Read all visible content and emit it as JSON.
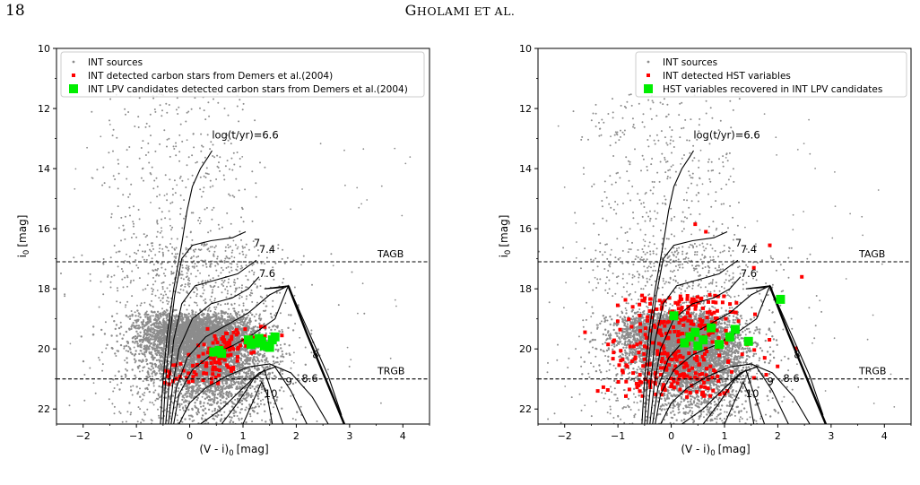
{
  "header": {
    "page_number": "18",
    "running_head_first": "G",
    "running_head_rest": "HOLAMI ET AL."
  },
  "colors": {
    "int_sources": "#8c8c8c",
    "detected": "#ff0000",
    "lpv": "#00ee00",
    "isochrone": "#000000"
  },
  "chart_data": [
    {
      "type": "scatter",
      "panel": "left",
      "xlabel": "(V - i)",
      "xlabel_sub": "0",
      "xlabel_unit": "[mag]",
      "ylabel": "i",
      "ylabel_sub": "0",
      "ylabel_unit": "[mag]",
      "xlim": [
        -2.5,
        4.5
      ],
      "ylim": [
        22.5,
        10
      ],
      "y_inverted": true,
      "xticks": [
        -2,
        -1,
        0,
        1,
        2,
        3,
        4
      ],
      "xtick_labels": [
        "−2",
        "−1",
        "0",
        "1",
        "2",
        "3",
        "4"
      ],
      "yticks": [
        10,
        12,
        14,
        16,
        18,
        20,
        22
      ],
      "ytick_labels": [
        "10",
        "12",
        "14",
        "16",
        "18",
        "20",
        "22"
      ],
      "legend_position": "top-left",
      "legend": [
        {
          "label": "INT sources",
          "marker": "dot",
          "color": "#8c8c8c"
        },
        {
          "label": "INT detected carbon stars from Demers et al.(2004)",
          "marker": "small-square",
          "color": "#ff0000"
        },
        {
          "label": "INT LPV candidates detected carbon stars from Demers et al.(2004)",
          "marker": "square",
          "color": "#00ee00"
        }
      ],
      "reference_lines": [
        {
          "label": "TAGB",
          "y": 17.1
        },
        {
          "label": "TRGB",
          "y": 21.0
        }
      ],
      "isochrone_labels": [
        {
          "text": "log(t/yr)=6.6",
          "x": 0.45,
          "y": 13.0
        },
        {
          "text": "7",
          "x": 1.2,
          "y": 16.6
        },
        {
          "text": "7.4",
          "x": 1.3,
          "y": 16.8
        },
        {
          "text": "7.6",
          "x": 1.3,
          "y": 17.6
        },
        {
          "text": "8",
          "x": 2.3,
          "y": 20.3
        },
        {
          "text": "8.6",
          "x": 2.1,
          "y": 21.1
        },
        {
          "text": "9",
          "x": 1.8,
          "y": 21.2
        },
        {
          "text": "10",
          "x": 1.4,
          "y": 21.6
        }
      ],
      "series": [
        {
          "name": "INT LPV candidates detected carbon stars from Demers et al.(2004)",
          "points": [
            [
              0.55,
              20.05
            ],
            [
              0.6,
              20.15
            ],
            [
              1.1,
              19.7
            ],
            [
              1.15,
              19.85
            ],
            [
              1.25,
              19.8
            ],
            [
              1.35,
              19.75
            ],
            [
              1.4,
              19.9
            ],
            [
              1.5,
              19.95
            ],
            [
              1.55,
              19.7
            ],
            [
              1.6,
              19.6
            ],
            [
              1.3,
              19.65
            ],
            [
              0.45,
              20.1
            ]
          ]
        }
      ]
    },
    {
      "type": "scatter",
      "panel": "right",
      "xlabel": "(V - i)",
      "xlabel_sub": "0",
      "xlabel_unit": "[mag]",
      "ylabel": "i",
      "ylabel_sub": "0",
      "ylabel_unit": "[mag]",
      "xlim": [
        -2.5,
        4.5
      ],
      "ylim": [
        22.5,
        10
      ],
      "y_inverted": true,
      "xticks": [
        -2,
        -1,
        0,
        1,
        2,
        3,
        4
      ],
      "xtick_labels": [
        "−2",
        "−1",
        "0",
        "1",
        "2",
        "3",
        "4"
      ],
      "yticks": [
        10,
        12,
        14,
        16,
        18,
        20,
        22
      ],
      "ytick_labels": [
        "10",
        "12",
        "14",
        "16",
        "18",
        "20",
        "22"
      ],
      "legend_position": "top-right",
      "legend": [
        {
          "label": "INT sources",
          "marker": "dot",
          "color": "#8c8c8c"
        },
        {
          "label": "INT detected HST variables",
          "marker": "small-square",
          "color": "#ff0000"
        },
        {
          "label": "HST variables recovered in INT LPV candidates",
          "marker": "square",
          "color": "#00ee00"
        }
      ],
      "reference_lines": [
        {
          "label": "TAGB",
          "y": 17.1
        },
        {
          "label": "TRGB",
          "y": 21.0
        }
      ],
      "isochrone_labels": [
        {
          "text": "log(t/yr)=6.6",
          "x": 0.45,
          "y": 13.0
        },
        {
          "text": "7",
          "x": 1.2,
          "y": 16.6
        },
        {
          "text": "7.4",
          "x": 1.3,
          "y": 16.8
        },
        {
          "text": "7.6",
          "x": 1.3,
          "y": 17.6
        },
        {
          "text": "8",
          "x": 2.3,
          "y": 20.3
        },
        {
          "text": "8.6",
          "x": 2.1,
          "y": 21.1
        },
        {
          "text": "9",
          "x": 1.8,
          "y": 21.2
        },
        {
          "text": "10",
          "x": 1.4,
          "y": 21.6
        }
      ],
      "series": [
        {
          "name": "HST variables recovered in INT LPV candidates",
          "points": [
            [
              0.05,
              18.9
            ],
            [
              0.25,
              19.8
            ],
            [
              0.35,
              19.6
            ],
            [
              0.45,
              19.45
            ],
            [
              0.5,
              19.9
            ],
            [
              0.6,
              19.7
            ],
            [
              0.75,
              19.3
            ],
            [
              0.9,
              19.85
            ],
            [
              1.1,
              19.6
            ],
            [
              1.2,
              19.35
            ],
            [
              1.45,
              19.75
            ],
            [
              2.05,
              18.35
            ]
          ]
        }
      ]
    }
  ]
}
